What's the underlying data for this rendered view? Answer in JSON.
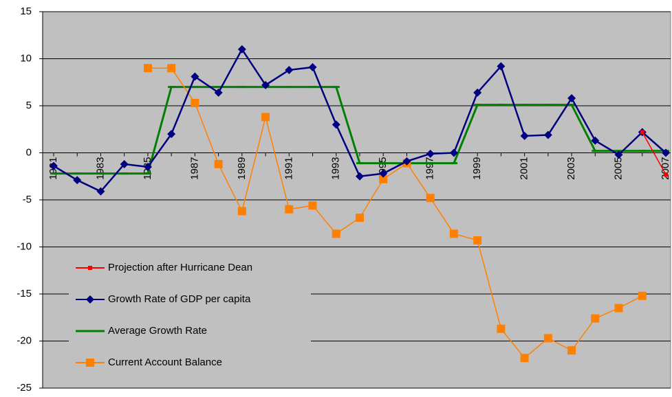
{
  "chart_data": {
    "type": "line",
    "categories": [
      "1981",
      null,
      "1983",
      null,
      "1985",
      null,
      "1987",
      null,
      "1989",
      null,
      "1991",
      null,
      "1993",
      null,
      "1995",
      null,
      "1997",
      null,
      "1999",
      null,
      "2001",
      null,
      "2003",
      null,
      "2005",
      null,
      "2007"
    ],
    "series": [
      {
        "name": "Projection after Hurricane Dean",
        "color": "#ff0000",
        "marker": "square-small",
        "values": [
          null,
          null,
          null,
          null,
          null,
          null,
          null,
          null,
          null,
          null,
          null,
          null,
          null,
          null,
          null,
          null,
          null,
          null,
          null,
          null,
          null,
          null,
          null,
          null,
          null,
          2.2,
          -2.3
        ]
      },
      {
        "name": "Growth Rate of GDP per capita",
        "color": "#000080",
        "marker": "diamond",
        "values": [
          -1.4,
          -2.9,
          -4.1,
          -1.2,
          -1.5,
          2.0,
          8.1,
          6.4,
          11.0,
          7.2,
          8.8,
          9.1,
          3.0,
          -2.5,
          -2.2,
          -0.9,
          -0.1,
          0.0,
          6.4,
          9.2,
          1.8,
          1.9,
          5.8,
          1.3,
          -0.2,
          2.2,
          0.0
        ]
      },
      {
        "name": "Average Growth Rate",
        "color": "#008000",
        "marker": "dash",
        "values": [
          -2.2,
          -2.2,
          -2.2,
          -2.2,
          -2.2,
          7.0,
          7.0,
          7.0,
          7.0,
          7.0,
          7.0,
          7.0,
          7.0,
          -1.1,
          -1.1,
          -1.1,
          -1.1,
          -1.1,
          5.1,
          5.1,
          5.1,
          5.1,
          5.1,
          0.2,
          0.2,
          0.2,
          0.2
        ]
      },
      {
        "name": "Current Account Balance",
        "color": "#ff8000",
        "marker": "square",
        "values": [
          null,
          null,
          null,
          null,
          9.0,
          9.0,
          5.3,
          -1.2,
          -6.2,
          3.8,
          -6.0,
          -5.6,
          -8.6,
          -6.9,
          -2.8,
          -1.1,
          -4.8,
          -8.6,
          -9.3,
          -18.7,
          -21.8,
          -19.7,
          -21.0,
          -17.6,
          -16.5,
          -15.2,
          null
        ]
      }
    ],
    "ylim": [
      -25,
      15
    ],
    "yticks": [
      -25,
      -20,
      -15,
      -10,
      -5,
      0,
      5,
      10,
      15
    ],
    "grid": true,
    "legend": "lower-left"
  }
}
